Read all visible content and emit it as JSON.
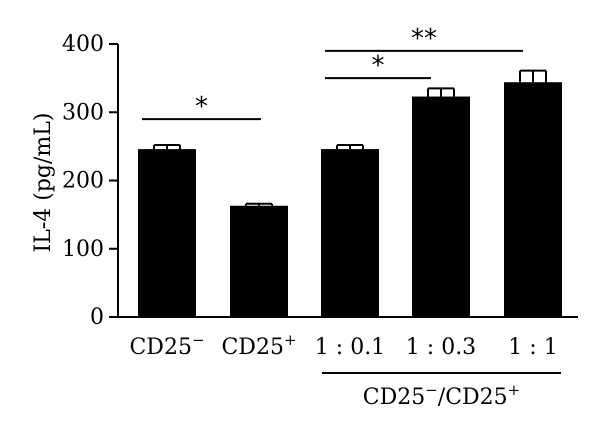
{
  "chart_data": {
    "type": "bar",
    "ylabel": "IL-4 (pg/mL)",
    "ylim": [
      0,
      400
    ],
    "yticks": [
      0,
      100,
      200,
      300,
      400
    ],
    "categories": [
      {
        "base": "CD25",
        "sup": "−"
      },
      {
        "base": "CD25",
        "sup": "+"
      },
      {
        "base": "1 : 0.1",
        "sup": ""
      },
      {
        "base": "1 : 0.3",
        "sup": ""
      },
      {
        "base": "1 : 1",
        "sup": ""
      }
    ],
    "values": [
      246,
      163,
      246,
      323,
      344
    ],
    "errors": [
      6,
      3,
      6,
      12,
      17
    ],
    "group_label": {
      "parts": [
        {
          "text": "CD25",
          "sup": false
        },
        {
          "text": "−",
          "sup": true
        },
        {
          "text": "/CD25",
          "sup": false
        },
        {
          "text": "+",
          "sup": true
        }
      ],
      "spans": [
        2,
        4
      ]
    },
    "significance": [
      {
        "from": 0,
        "to": 1,
        "label": "*",
        "y": 290
      },
      {
        "from": 2,
        "to": 3,
        "label": "*",
        "y": 350
      },
      {
        "from": 2,
        "to": 4,
        "label": "**",
        "y": 390
      }
    ],
    "colors": {
      "bar": "#000000",
      "axis": "#000000"
    }
  }
}
